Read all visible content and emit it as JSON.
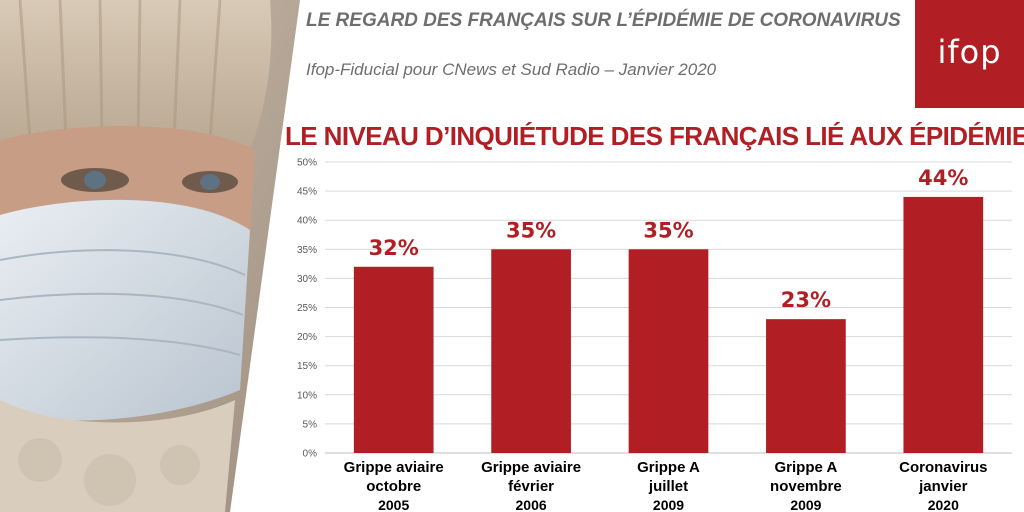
{
  "header": {
    "title": "LE REGARD DES FRANÇAIS SUR L’ÉPIDÉMIE DE CORONAVIRUS",
    "subtitle": "Ifop-Fiducial pour CNews et Sud Radio – Janvier 2020"
  },
  "logo": {
    "text": "ifop",
    "color": "#b11f24"
  },
  "photo": {
    "subject": "woman-wearing-surgical-mask-and-knit-hat"
  },
  "chart_data": {
    "type": "bar",
    "title": "LE NIVEAU D’INQUIÉTUDE DES FRANÇAIS LIÉ AUX ÉPIDÉMIES",
    "categories": [
      [
        "Grippe aviaire",
        "octobre",
        "2005"
      ],
      [
        "Grippe aviaire",
        "février",
        "2006"
      ],
      [
        "Grippe A",
        "juillet",
        "2009"
      ],
      [
        "Grippe A",
        "novembre",
        "2009"
      ],
      [
        "Coronavirus",
        "janvier",
        "2020"
      ]
    ],
    "values": [
      32,
      35,
      35,
      23,
      44
    ],
    "data_labels": [
      "32%",
      "35%",
      "35%",
      "23%",
      "44%"
    ],
    "yticks": [
      "0%",
      "5%",
      "10%",
      "15%",
      "20%",
      "25%",
      "30%",
      "35%",
      "40%",
      "45%",
      "50%"
    ],
    "ylim": [
      0,
      50
    ],
    "grid": true,
    "bar_color": "#b11f24",
    "xlabel": "",
    "ylabel": ""
  }
}
